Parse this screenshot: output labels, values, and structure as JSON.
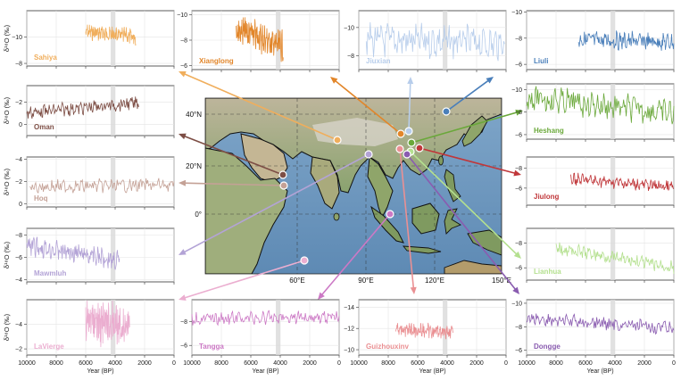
{
  "ylabel": "δ¹⁸O (‰)",
  "xlabel": "Year (BP)",
  "map": {
    "lat_labels": [
      "40°N",
      "20°N",
      "0°"
    ],
    "lon_labels": [
      "60°E",
      "90°E",
      "120°E",
      "150°E"
    ]
  },
  "chart_data": [
    {
      "type": "line",
      "id": "sahiya",
      "name": "Sahiya",
      "color": "#f0ae5c",
      "xlim": [
        10000,
        0
      ],
      "ylim": [
        -7.8,
        -12.0
      ],
      "yticks": [
        -8,
        -10
      ],
      "x_range": [
        6000,
        2600
      ],
      "y_mean": -10.2,
      "y_amp": 0.8,
      "trend": 0.4
    },
    {
      "type": "line",
      "id": "xianglong",
      "name": "Xianglong",
      "color": "#e2862a",
      "xlim": [
        10000,
        0
      ],
      "ylim": [
        -5.7,
        -10.3
      ],
      "yticks": [
        -6,
        -8,
        -10
      ],
      "x_range": [
        7000,
        3800
      ],
      "y_mean": -8.2,
      "y_amp": 1.6,
      "trend": 1.5
    },
    {
      "type": "line",
      "id": "jiuxian",
      "name": "Jiuxian",
      "color": "#b7cdeb",
      "xlim": [
        10000,
        0
      ],
      "ylim": [
        -7.0,
        -11.2
      ],
      "yticks": [
        -8,
        -10
      ],
      "x_range": [
        9500,
        100
      ],
      "y_mean": -9.0,
      "y_amp": 1.6,
      "trend": 0.3
    },
    {
      "type": "line",
      "id": "liuli",
      "name": "Liuli",
      "color": "#4a7fba",
      "xlim": [
        10000,
        0
      ],
      "ylim": [
        -5.6,
        -10.1
      ],
      "yticks": [
        -6,
        -8,
        -10
      ],
      "x_range": [
        6500,
        0
      ],
      "y_mean": -7.8,
      "y_amp": 0.9,
      "trend": 0.2
    },
    {
      "type": "line",
      "id": "oman",
      "name": "Oman",
      "color": "#7d4e45",
      "xlim": [
        10000,
        0
      ],
      "ylim": [
        1.0,
        -3.5
      ],
      "yticks": [
        0,
        -2
      ],
      "x_range": [
        10000,
        2400
      ],
      "y_mean": -1.5,
      "y_amp": 0.8,
      "trend": -0.9
    },
    {
      "type": "line",
      "id": "heshang",
      "name": "Heshang",
      "color": "#6aa83a",
      "xlim": [
        10000,
        0
      ],
      "ylim": [
        -5.6,
        -10.5
      ],
      "yticks": [
        -6,
        -8,
        -10
      ],
      "x_range": [
        10000,
        0
      ],
      "y_mean": -8.6,
      "y_amp": 1.6,
      "trend": 1.4
    },
    {
      "type": "line",
      "id": "hoq",
      "name": "Hoq",
      "color": "#c4a196",
      "xlim": [
        10000,
        0
      ],
      "ylim": [
        0.3,
        -4.2
      ],
      "yticks": [
        0,
        -2,
        -4
      ],
      "x_range": [
        9800,
        0
      ],
      "y_mean": -1.6,
      "y_amp": 0.8,
      "trend": -0.2
    },
    {
      "type": "line",
      "id": "jiulong",
      "name": "Jiulong",
      "color": "#c0373a",
      "xlim": [
        10000,
        0
      ],
      "ylim": [
        -4.3,
        -9.1
      ],
      "yticks": [
        -6,
        -8
      ],
      "x_range": [
        7000,
        0
      ],
      "y_mean": -6.5,
      "y_amp": 0.8,
      "trend": 0.8
    },
    {
      "type": "line",
      "id": "mawmluh",
      "name": "Mawmluh",
      "color": "#b3a3d6",
      "xlim": [
        10000,
        0
      ],
      "ylim": [
        -3.8,
        -8.6
      ],
      "yticks": [
        -4,
        -6,
        -8
      ],
      "x_range": [
        10000,
        3700
      ],
      "y_mean": -6.4,
      "y_amp": 1.2,
      "trend": 1.3
    },
    {
      "type": "line",
      "id": "lianhua",
      "name": "Lianhua",
      "color": "#b4e08f",
      "xlim": [
        10000,
        0
      ],
      "ylim": [
        -5.0,
        -9.2
      ],
      "yticks": [
        -6,
        -8
      ],
      "x_range": [
        8000,
        0
      ],
      "y_mean": -6.8,
      "y_amp": 0.7,
      "trend": 1.6
    },
    {
      "type": "line",
      "id": "lavierge",
      "name": "LaVierge",
      "color": "#ebaed0",
      "xlim": [
        10000,
        0
      ],
      "ylim": [
        -1.5,
        -6.0
      ],
      "yticks": [
        -2,
        -4
      ],
      "x_range": [
        6000,
        3000
      ],
      "y_mean": -4.0,
      "y_amp": 2.4,
      "trend": 0.2
    },
    {
      "type": "line",
      "id": "tangga",
      "name": "Tangga",
      "color": "#cc79c5",
      "xlim": [
        10000,
        0
      ],
      "ylim": [
        -5.2,
        -9.8
      ],
      "yticks": [
        -6,
        -8
      ],
      "x_range": [
        10000,
        0
      ],
      "y_mean": -8.3,
      "y_amp": 0.7,
      "trend": -0.2
    },
    {
      "type": "line",
      "id": "guizhouxinv",
      "name": "Guizhouxinv",
      "color": "#ea9093",
      "xlim": [
        10000,
        0
      ],
      "ylim": [
        -9.5,
        -14.7
      ],
      "yticks": [
        -10,
        -12,
        -14
      ],
      "x_range": [
        7500,
        3600
      ],
      "y_mean": -11.8,
      "y_amp": 0.9,
      "trend": 0.3
    },
    {
      "type": "line",
      "id": "dongge",
      "name": "Dongge",
      "color": "#8a5cb0",
      "xlim": [
        10000,
        0
      ],
      "ylim": [
        -5.6,
        -10.3
      ],
      "yticks": [
        -6,
        -8,
        -10
      ],
      "x_range": [
        10000,
        0
      ],
      "y_mean": -8.3,
      "y_amp": 0.8,
      "trend": 0.9
    }
  ],
  "xticks": [
    10000,
    8000,
    6000,
    4000,
    2000,
    0
  ]
}
